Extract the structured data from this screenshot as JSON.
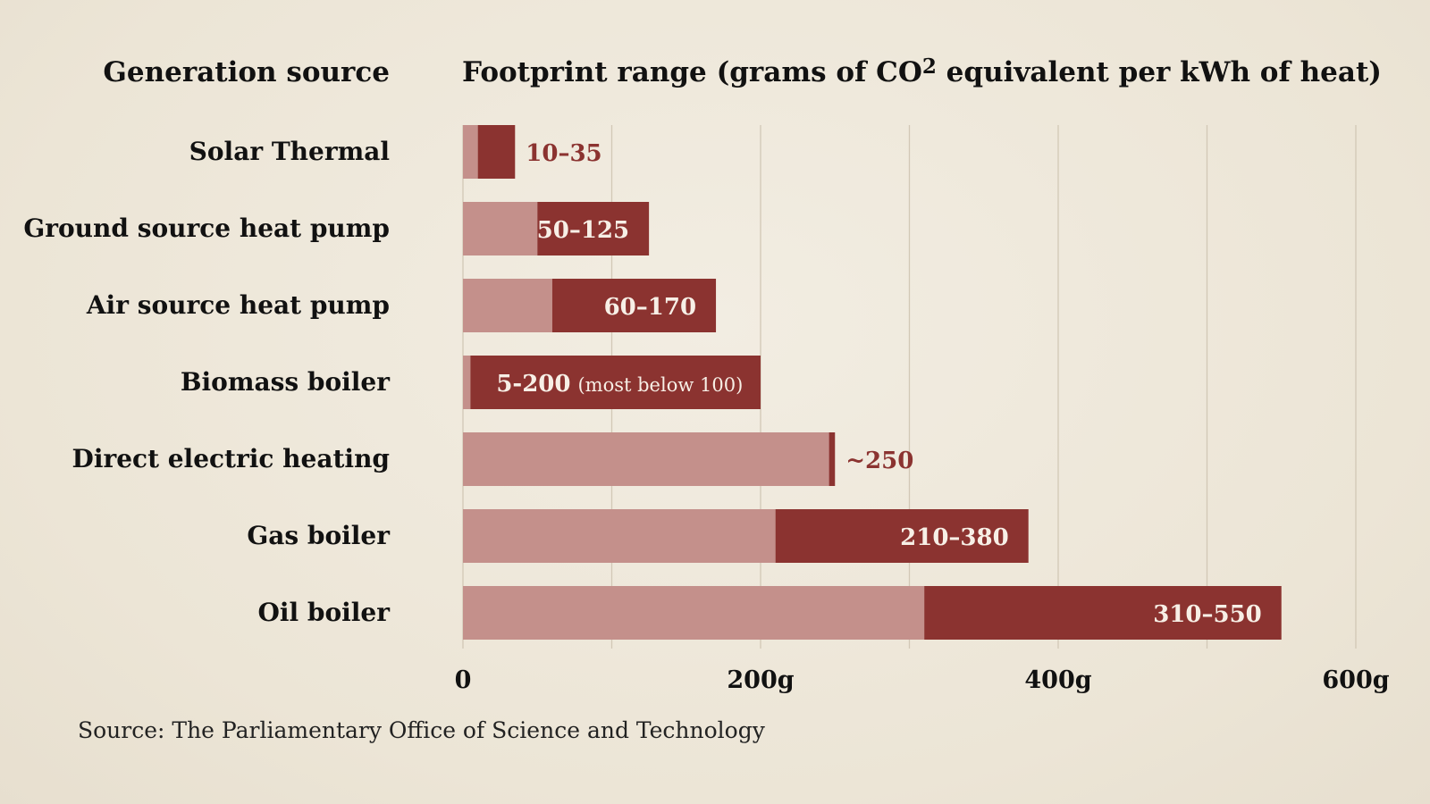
{
  "chart_data": {
    "type": "bar",
    "orientation": "horizontal",
    "stacked_range": true,
    "header_left": "Generation source",
    "title": "Footprint range (grams of CO",
    "title_sup": "2",
    "title_end": " equivalent per kWh of heat)",
    "xlim": [
      0,
      600
    ],
    "ticks": [
      {
        "value": 0,
        "label": "0"
      },
      {
        "value": 200,
        "label": "200g"
      },
      {
        "value": 400,
        "label": "400g"
      },
      {
        "value": 600,
        "label": "600g"
      }
    ],
    "gridlines": [
      0,
      100,
      200,
      300,
      400,
      500,
      600
    ],
    "series": [
      {
        "name": "minimum",
        "color": "#c4908b"
      },
      {
        "name": "range",
        "color": "#8b3330"
      }
    ],
    "categories": [
      {
        "name": "Solar Thermal",
        "min": 10,
        "max": 35,
        "label": "10–35",
        "note": "",
        "label_pos": "outside"
      },
      {
        "name": "Ground source heat pump",
        "min": 50,
        "max": 125,
        "label": "50–125",
        "note": "",
        "label_pos": "inside"
      },
      {
        "name": "Air source heat pump",
        "min": 60,
        "max": 170,
        "label": "60–170",
        "note": "",
        "label_pos": "inside"
      },
      {
        "name": "Biomass boiler",
        "min": 5,
        "max": 200,
        "label": "5-200",
        "note": "(most below 100)",
        "label_pos": "inside-left"
      },
      {
        "name": "Direct electric heating",
        "min": 246,
        "max": 250,
        "label": "~250",
        "note": "",
        "label_pos": "outside"
      },
      {
        "name": "Gas boiler",
        "min": 210,
        "max": 380,
        "label": "210–380",
        "note": "",
        "label_pos": "inside"
      },
      {
        "name": "Oil boiler",
        "min": 310,
        "max": 550,
        "label": "310–550",
        "note": "",
        "label_pos": "inside"
      }
    ],
    "source": "Source: The Parliamentary Office of Science and Technology"
  },
  "colors": {
    "light": "#c4908b",
    "dark": "#8b3330",
    "grid": "#d2c8b6",
    "label_out": "#8b3330",
    "label_in": "#f7efe6"
  }
}
